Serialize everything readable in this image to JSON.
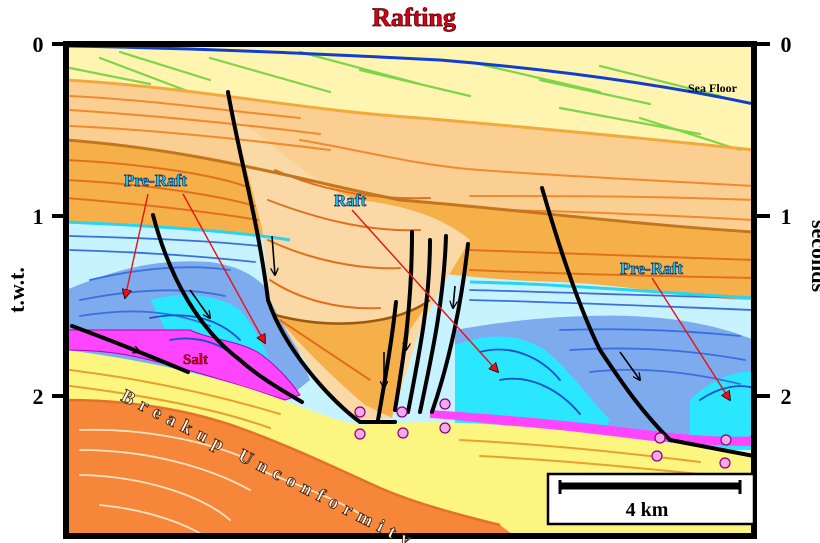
{
  "title": "Rafting",
  "left_axis": {
    "label": "t.w.t.",
    "ticks": [
      "0",
      "1",
      "2"
    ]
  },
  "right_axis": {
    "label": "seconds",
    "ticks": [
      "0",
      "1",
      "2"
    ]
  },
  "labels": {
    "sea_floor": "Sea Floor",
    "pre_raft_left": "Pre-Raft",
    "raft": "Raft",
    "pre_raft_right": "Pre-Raft",
    "salt": "Salt",
    "breakup": "Breakup Unconformity"
  },
  "scale_bar": {
    "label": "4 km"
  },
  "colors": {
    "title_red": "#d4001c",
    "label_cyan": "#18c8f0",
    "arrow_red": "#e81010",
    "sea_floor": "#0f3fcc",
    "salt": "#ff45ff",
    "basement": "#f5863a",
    "raft_fill": "#fbd9a6",
    "pre_raft_blue": "#7eaaee",
    "cyan_layer": "#2ae6ff"
  }
}
